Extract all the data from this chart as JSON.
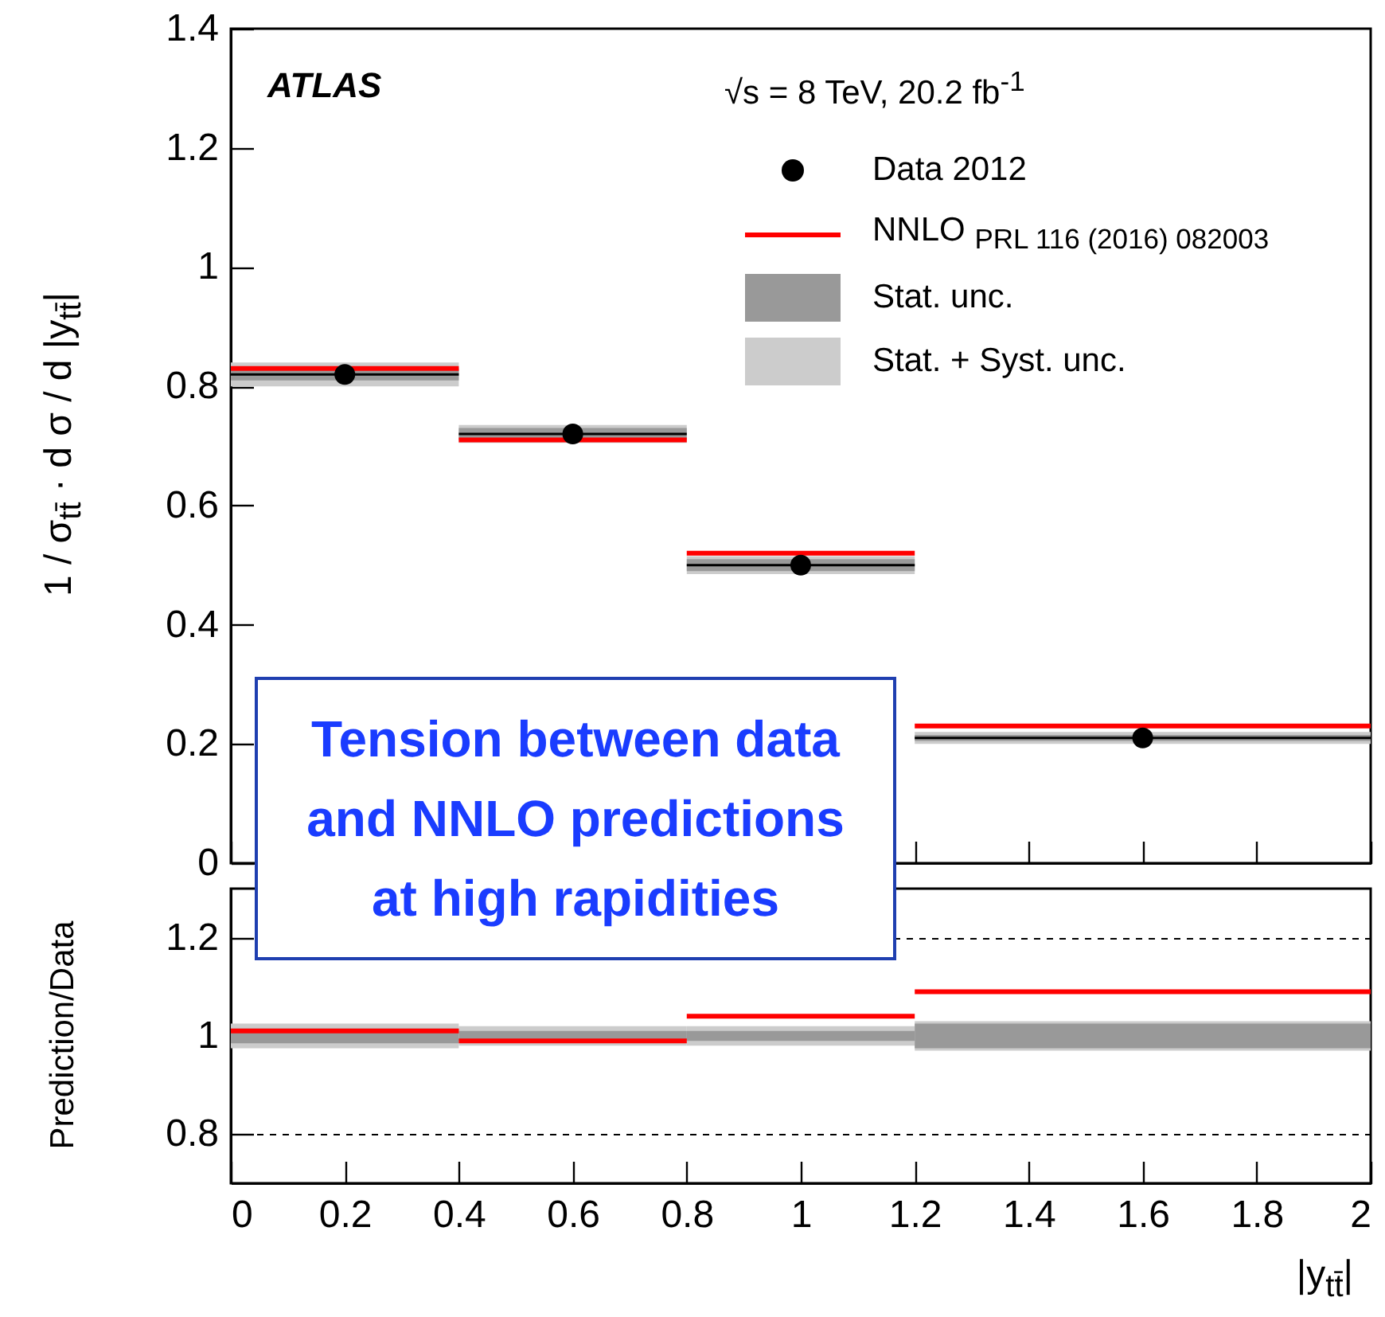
{
  "chart_data": [
    {
      "type": "scatter",
      "ylabel": "1 / σ$_{tt̄}$ · d σ / d |y$_{tt̄}$|",
      "annotations": [
        "ATLAS",
        "√s = 8 TeV, 20.2 fb$^{-1}$",
        "Tension between data and NNLO predictions at high rapidities"
      ],
      "xlim": [
        0,
        2
      ],
      "ylim": [
        0,
        1.4
      ],
      "xticks": [
        0,
        0.2,
        0.4,
        0.6,
        0.8,
        1,
        1.2,
        1.4,
        1.6,
        1.8,
        2
      ],
      "yticks": [
        0,
        0.2,
        0.4,
        0.6,
        0.8,
        1,
        1.2,
        1.4
      ],
      "tick_labels": "y",
      "legend": "top right",
      "series": [
        {
          "name": "Stat. + Syst. unc.",
          "type": "line",
          "color": "#cccccc",
          "x": [
            0,
            0.4,
            0.4,
            0.8,
            0.8,
            1.2,
            1.2,
            2
          ],
          "values": [
            null,
            null,
            null,
            null,
            null,
            null,
            null,
            null
          ],
          "lower": [
            0.8,
            0.8,
            0.705,
            0.705,
            0.485,
            0.485,
            0.2,
            0.2
          ],
          "upper": [
            0.84,
            0.84,
            0.735,
            0.735,
            0.515,
            0.515,
            0.22,
            0.22
          ]
        },
        {
          "name": "Stat. unc.",
          "type": "line",
          "color": "#999999",
          "x": [
            0,
            0.4,
            0.4,
            0.8,
            0.8,
            1.2,
            1.2,
            2
          ],
          "values": [
            null,
            null,
            null,
            null,
            null,
            null,
            null,
            null
          ],
          "lower": [
            0.81,
            0.81,
            0.71,
            0.71,
            0.49,
            0.49,
            0.205,
            0.205
          ],
          "upper": [
            0.83,
            0.83,
            0.73,
            0.73,
            0.51,
            0.51,
            0.215,
            0.215
          ]
        },
        {
          "name": "NNLO $_{PRL 116 (2016) 082003}$",
          "type": "line",
          "color": "#ff0000",
          "x": [
            0,
            0.4,
            null,
            0.4,
            0.8,
            null,
            0.8,
            1.2,
            null,
            1.2,
            2
          ],
          "values": [
            0.83,
            0.83,
            null,
            0.71,
            0.71,
            null,
            0.52,
            0.52,
            null,
            0.23,
            0.23
          ]
        },
        {
          "name": "Data 2012",
          "color": "#000000",
          "x": [
            0.2,
            0.6,
            1,
            1.6
          ],
          "xerrors": [
            0.2,
            0.2,
            0.2,
            0.4
          ],
          "values": [
            0.82,
            0.72,
            0.5,
            0.21
          ]
        }
      ]
    },
    {
      "type": "line",
      "xlabel": "|y$_{tt̄}$|",
      "ylabel": "Prediction/Data",
      "xlim": [
        0,
        2
      ],
      "ylim": [
        0.7,
        1.3
      ],
      "xticks": [
        0,
        0.2,
        0.4,
        0.6,
        0.8,
        1,
        1.2,
        1.4,
        1.6,
        1.8,
        2
      ],
      "yticks": [
        0.8,
        1,
        1.2
      ],
      "grid": "y",
      "series": [
        {
          "color": "#cccccc",
          "x": [
            0,
            0.4,
            0.4,
            0.8,
            0.8,
            1.2,
            1.2,
            2
          ],
          "values": [
            null,
            null,
            null,
            null,
            null,
            null,
            null,
            null
          ],
          "lower": [
            0.975,
            0.975,
            0.98,
            0.98,
            0.98,
            0.98,
            0.97,
            0.97
          ],
          "upper": [
            1.025,
            1.025,
            1.02,
            1.02,
            1.02,
            1.02,
            1.03,
            1.03
          ]
        },
        {
          "color": "#999999",
          "x": [
            0,
            0.4,
            0.4,
            0.8,
            0.8,
            1.2,
            1.2,
            2
          ],
          "values": [
            null,
            null,
            null,
            null,
            null,
            null,
            null,
            null
          ],
          "lower": [
            0.985,
            0.985,
            0.99,
            0.99,
            0.99,
            0.99,
            0.975,
            0.975
          ],
          "upper": [
            1.015,
            1.015,
            1.01,
            1.01,
            1.01,
            1.01,
            1.025,
            1.025
          ]
        },
        {
          "color": "#ff0000",
          "x": [
            0,
            0.4,
            null,
            0.4,
            0.8,
            null,
            0.8,
            1.2,
            null,
            1.2,
            2
          ],
          "values": [
            1.01,
            1.01,
            null,
            0.99,
            0.99,
            null,
            1.04,
            1.04,
            null,
            1.09,
            1.09
          ]
        }
      ]
    }
  ]
}
